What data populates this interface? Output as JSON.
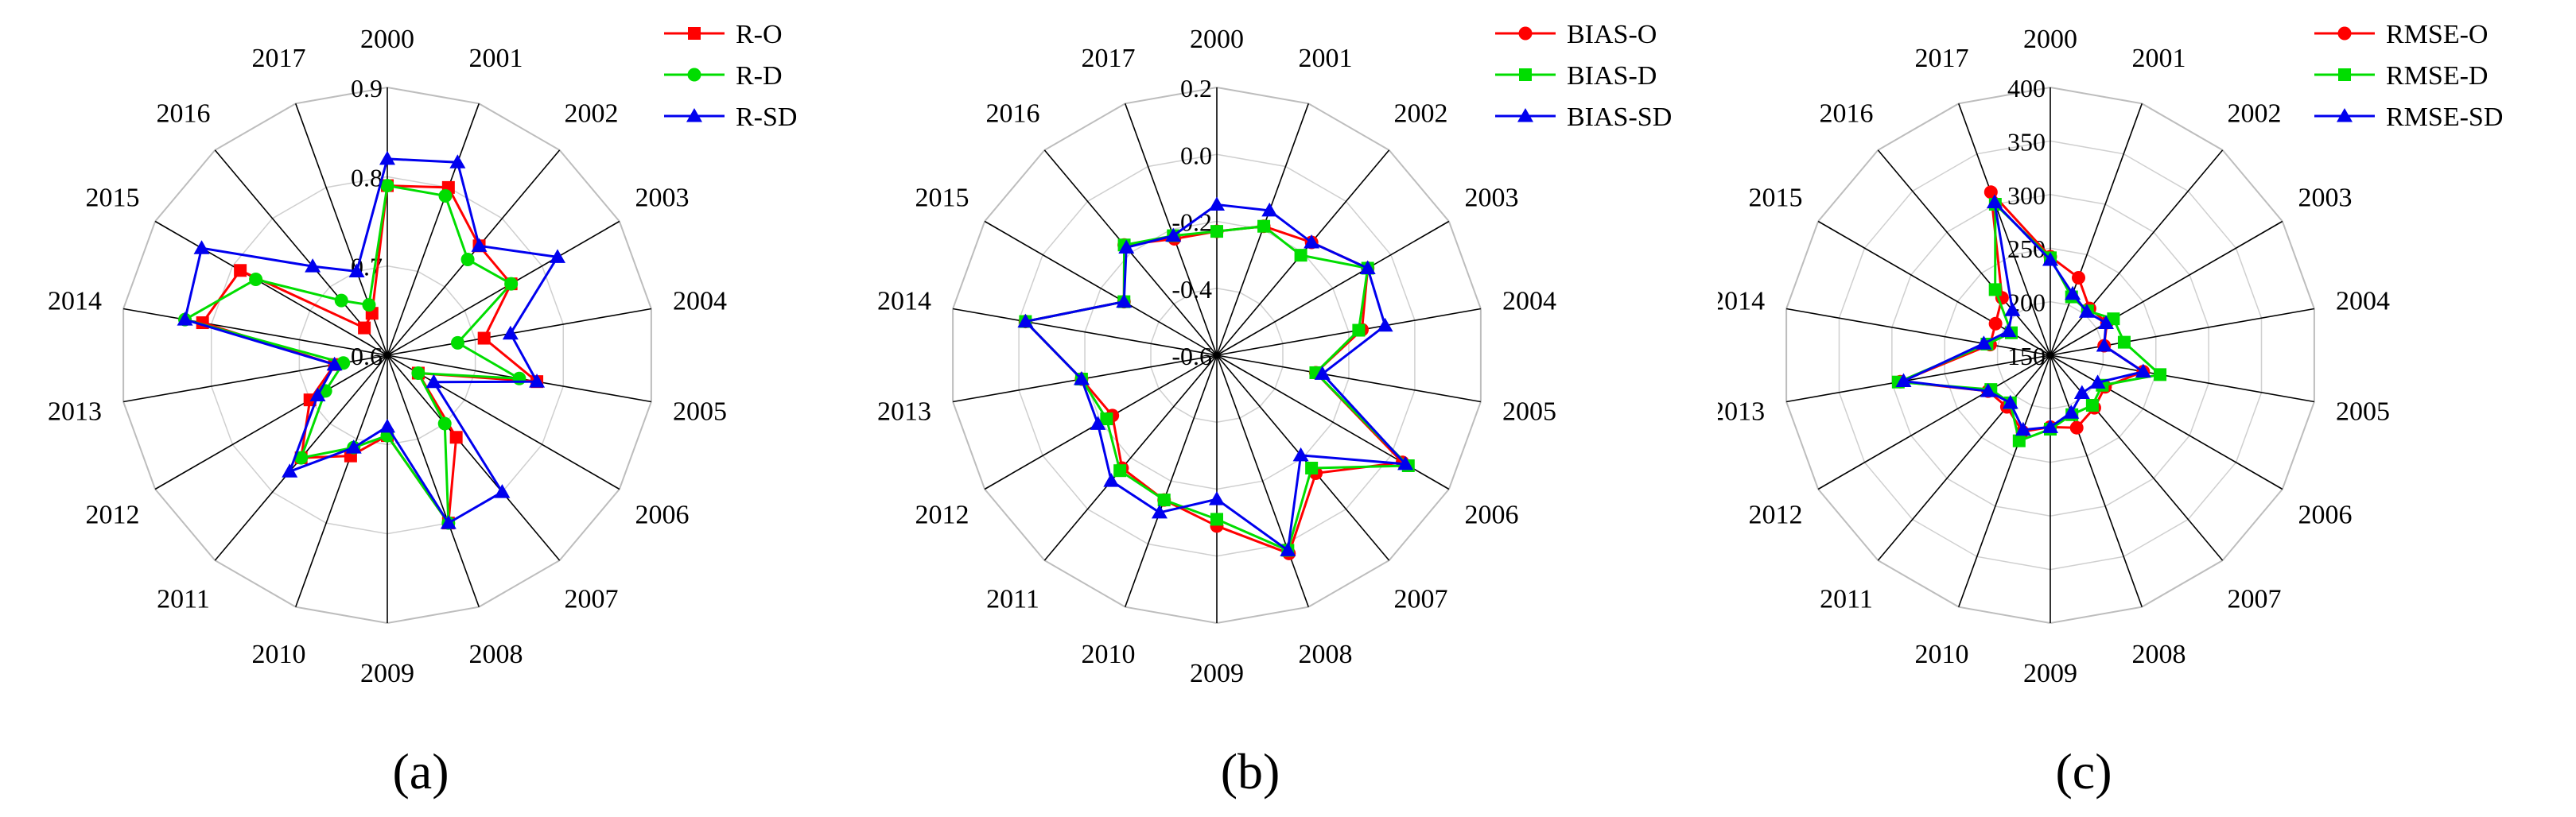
{
  "chart_data": [
    {
      "type": "radar",
      "panel_label": "(a)",
      "categories": [
        "2000",
        "2001",
        "2002",
        "2003",
        "2004",
        "2005",
        "2006",
        "2007",
        "2008",
        "2009",
        "2010",
        "2011",
        "2012",
        "2013",
        "2014",
        "2015",
        "2016",
        "2017"
      ],
      "rlim": [
        0.6,
        0.9
      ],
      "ticks": [
        0.6,
        0.7,
        0.8,
        0.9
      ],
      "tick_labels": [
        "0.6",
        "0.7",
        "0.8",
        "0.9"
      ],
      "grid": true,
      "legend_position": "top-right",
      "series": [
        {
          "name": "R-O",
          "color": "#ff0000",
          "marker": "square",
          "values": [
            0.79,
            0.8,
            0.76,
            0.76,
            0.71,
            0.77,
            0.64,
            0.72,
            0.8,
            0.69,
            0.72,
            0.75,
            0.7,
            0.66,
            0.81,
            0.79,
            0.64,
            0.65
          ]
        },
        {
          "name": "R-D",
          "color": "#00dd00",
          "marker": "circle",
          "values": [
            0.79,
            0.79,
            0.74,
            0.76,
            0.68,
            0.75,
            0.64,
            0.7,
            0.8,
            0.69,
            0.71,
            0.75,
            0.68,
            0.65,
            0.83,
            0.77,
            0.68,
            0.66
          ]
        },
        {
          "name": "R-SD",
          "color": "#0000ee",
          "marker": "triangle",
          "values": [
            0.82,
            0.83,
            0.76,
            0.82,
            0.74,
            0.77,
            0.66,
            0.8,
            0.8,
            0.68,
            0.71,
            0.77,
            0.69,
            0.66,
            0.83,
            0.84,
            0.73,
            0.7
          ]
        }
      ]
    },
    {
      "type": "radar",
      "panel_label": "(b)",
      "categories": [
        "2000",
        "2001",
        "2002",
        "2003",
        "2004",
        "2005",
        "2006",
        "2007",
        "2008",
        "2009",
        "2010",
        "2011",
        "2012",
        "2013",
        "2014",
        "2015",
        "2016",
        "2017"
      ],
      "rlim": [
        -0.6,
        0.2
      ],
      "ticks": [
        -0.6,
        -0.4,
        -0.2,
        0.0,
        0.2
      ],
      "tick_labels": [
        "-0.6",
        "-0.4",
        "-0.2",
        "0.0",
        "0.2"
      ],
      "grid": true,
      "legend_position": "top-right",
      "series": [
        {
          "name": "BIAS-O",
          "color": "#ff0000",
          "marker": "circle",
          "values": [
            -0.23,
            -0.19,
            -0.16,
            -0.08,
            -0.16,
            -0.3,
            0.04,
            -0.14,
            0.03,
            -0.09,
            -0.14,
            -0.16,
            -0.24,
            -0.19,
            -0.02,
            -0.28,
            -0.17,
            -0.23
          ]
        },
        {
          "name": "BIAS-D",
          "color": "#00dd00",
          "marker": "square",
          "values": [
            -0.23,
            -0.19,
            -0.21,
            -0.08,
            -0.17,
            -0.3,
            0.06,
            -0.16,
            0.02,
            -0.11,
            -0.14,
            -0.15,
            -0.22,
            -0.19,
            -0.02,
            -0.28,
            -0.17,
            -0.22
          ]
        },
        {
          "name": "BIAS-SD",
          "color": "#0000ee",
          "marker": "triangle",
          "values": [
            -0.15,
            -0.14,
            -0.16,
            -0.08,
            -0.09,
            -0.28,
            0.05,
            -0.21,
            0.02,
            -0.17,
            -0.1,
            -0.11,
            -0.19,
            -0.19,
            -0.02,
            -0.28,
            -0.18,
            -0.22
          ]
        }
      ]
    },
    {
      "type": "radar",
      "panel_label": "(c)",
      "categories": [
        "2000",
        "2001",
        "2002",
        "2003",
        "2004",
        "2005",
        "2006",
        "2007",
        "2008",
        "2009",
        "2010",
        "2011",
        "2012",
        "2013",
        "2014",
        "2015",
        "2016",
        "2017"
      ],
      "rlim": [
        150,
        400
      ],
      "ticks": [
        150,
        200,
        250,
        300,
        350,
        400
      ],
      "tick_labels": [
        "150",
        "200",
        "250",
        "300",
        "350",
        "400"
      ],
      "grid": true,
      "legend_position": "top-right",
      "series": [
        {
          "name": "RMSE-O",
          "color": "#ff0000",
          "marker": "circle",
          "values": [
            242,
            227,
            207,
            211,
            201,
            238,
            209,
            214,
            222,
            217,
            226,
            213,
            217,
            292,
            207,
            209,
            220,
            312
          ]
        },
        {
          "name": "RMSE-D",
          "color": "#00dd00",
          "marker": "square",
          "values": [
            241,
            208,
            204,
            218,
            220,
            254,
            206,
            211,
            209,
            219,
            235,
            208,
            214,
            294,
            210,
            192,
            230,
            300
          ]
        },
        {
          "name": "RMSE-SD",
          "color": "#0000ee",
          "marker": "triangle",
          "values": [
            239,
            211,
            203,
            210,
            201,
            238,
            201,
            196,
            207,
            217,
            224,
            208,
            217,
            289,
            213,
            195,
            205,
            302
          ]
        }
      ]
    }
  ]
}
